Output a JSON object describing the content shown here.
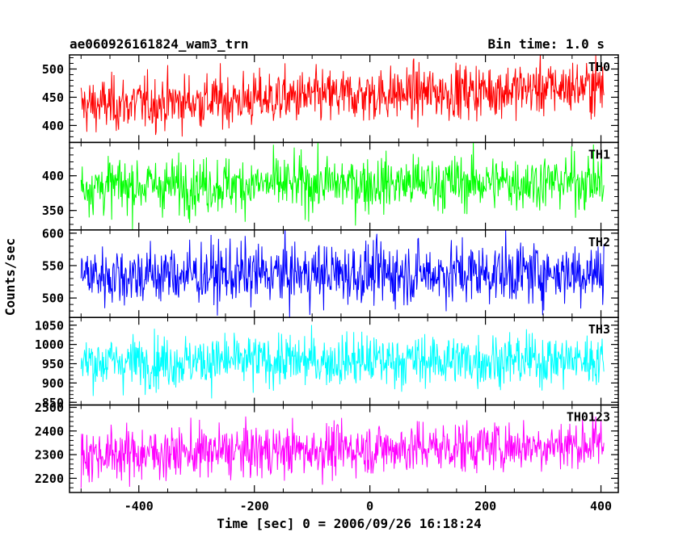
{
  "header": {
    "title": "ae060926161824_wam3_trn",
    "bin_time": "Bin time: 1.0 s"
  },
  "chart_data": {
    "type": "line",
    "xlabel": "Time [sec] 0 = 2006/09/26 16:18:24",
    "ylabel": "Counts/sec",
    "xlim": [
      -520,
      430
    ],
    "x_ticks": [
      -400,
      -200,
      0,
      200,
      400
    ],
    "x_range": [
      -500,
      405
    ],
    "bin_time": 1.0,
    "panels": [
      {
        "name": "TH0",
        "color": "#ff0000",
        "ylim": [
          370,
          525
        ],
        "ticks": [
          400,
          450,
          500
        ],
        "mean_start": 435,
        "mean_end": 470,
        "noise": 24
      },
      {
        "name": "TH1",
        "color": "#00ff00",
        "ylim": [
          322,
          448
        ],
        "ticks": [
          350,
          400
        ],
        "mean_start": 385,
        "mean_end": 392,
        "noise": 20
      },
      {
        "name": "TH2",
        "color": "#0000ff",
        "ylim": [
          470,
          605
        ],
        "ticks": [
          500,
          550,
          600
        ],
        "mean_start": 535,
        "mean_end": 540,
        "noise": 24
      },
      {
        "name": "TH3",
        "color": "#00ffff",
        "ylim": [
          843,
          1070
        ],
        "ticks": [
          850,
          900,
          950,
          1000,
          1050
        ],
        "mean_start": 955,
        "mean_end": 960,
        "noise": 34
      },
      {
        "name": "TH0123",
        "color": "#ff00ff",
        "ylim": [
          2140,
          2510
        ],
        "ticks": [
          2200,
          2300,
          2400,
          2500
        ],
        "mean_start": 2300,
        "mean_end": 2345,
        "noise": 55
      }
    ]
  }
}
